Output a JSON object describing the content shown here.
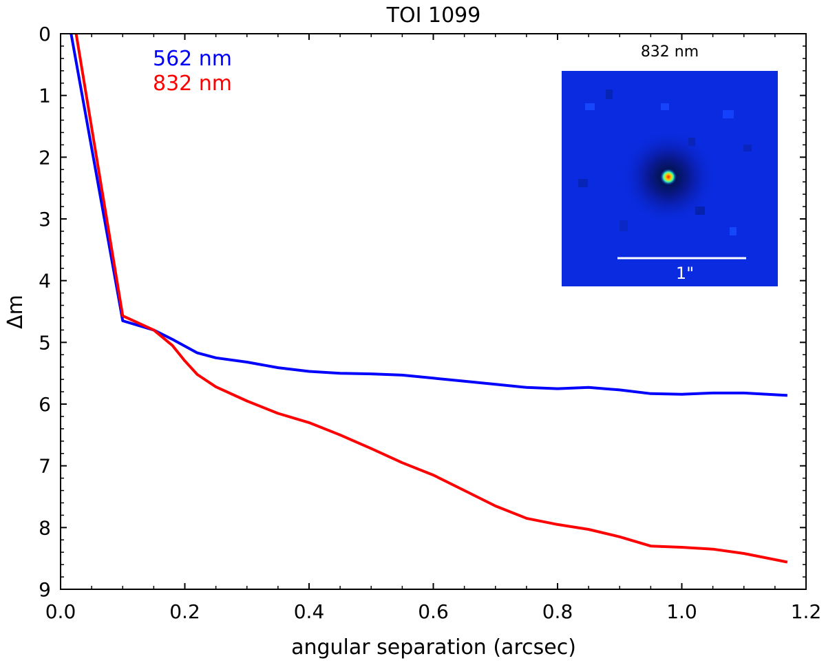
{
  "chart_data": {
    "type": "line",
    "title": "TOI 1099",
    "xlabel": "angular separation (arcsec)",
    "ylabel": "Δm",
    "xlim": [
      0.0,
      1.2
    ],
    "ylim": [
      0,
      9
    ],
    "y_inverted": true,
    "grid": false,
    "x_ticks": [
      "0.0",
      "0.2",
      "0.4",
      "0.6",
      "0.8",
      "1.0",
      "1.2"
    ],
    "y_ticks": [
      "0",
      "1",
      "2",
      "3",
      "4",
      "5",
      "6",
      "7",
      "8",
      "9"
    ],
    "legend_placement": "top-left",
    "series": [
      {
        "name": "562 nm",
        "color": "#0000ff",
        "x": [
          0.017,
          0.1,
          0.15,
          0.18,
          0.22,
          0.25,
          0.3,
          0.35,
          0.4,
          0.45,
          0.5,
          0.55,
          0.6,
          0.65,
          0.7,
          0.75,
          0.8,
          0.85,
          0.9,
          0.95,
          1.0,
          1.05,
          1.1,
          1.17
        ],
        "y": [
          0.0,
          4.65,
          4.8,
          4.95,
          5.17,
          5.25,
          5.32,
          5.41,
          5.47,
          5.5,
          5.51,
          5.53,
          5.58,
          5.63,
          5.68,
          5.73,
          5.75,
          5.73,
          5.77,
          5.83,
          5.84,
          5.82,
          5.82,
          5.86
        ]
      },
      {
        "name": "832 nm",
        "color": "#ff0000",
        "x": [
          0.025,
          0.1,
          0.15,
          0.18,
          0.2,
          0.22,
          0.25,
          0.3,
          0.35,
          0.4,
          0.45,
          0.5,
          0.55,
          0.6,
          0.65,
          0.7,
          0.75,
          0.8,
          0.85,
          0.9,
          0.95,
          1.0,
          1.05,
          1.1,
          1.17
        ],
        "y": [
          0.0,
          4.57,
          4.8,
          5.05,
          5.3,
          5.52,
          5.72,
          5.95,
          6.15,
          6.3,
          6.5,
          6.72,
          6.95,
          7.15,
          7.4,
          7.65,
          7.85,
          7.95,
          8.03,
          8.15,
          8.3,
          8.32,
          8.35,
          8.42,
          8.56
        ]
      }
    ],
    "inset": {
      "label": "832 nm",
      "scale_label": "1\""
    }
  }
}
